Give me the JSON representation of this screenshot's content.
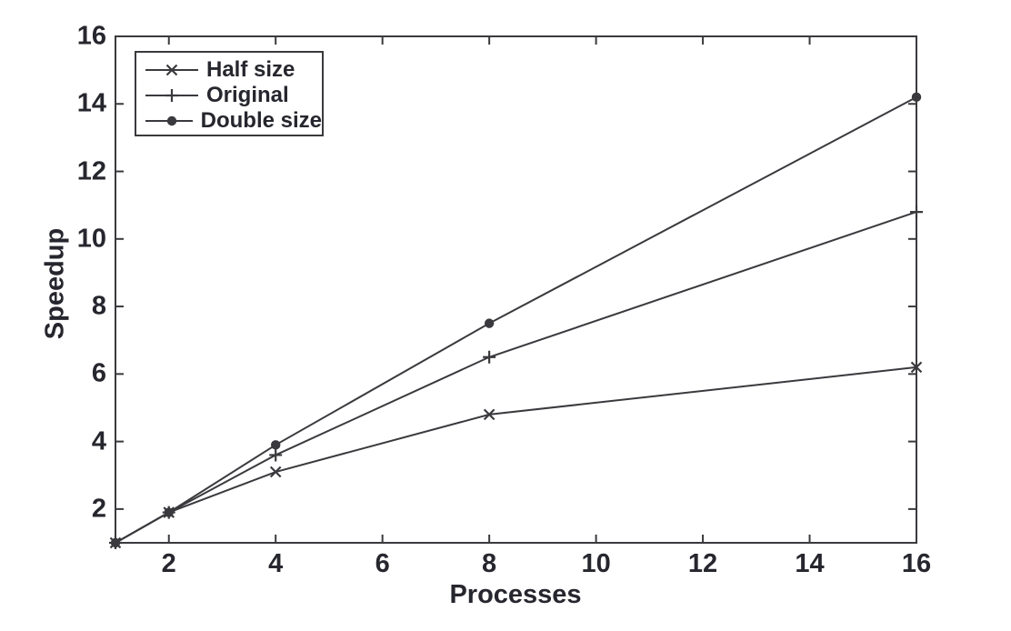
{
  "chart_data": {
    "type": "line",
    "title": "",
    "xlabel": "Processes",
    "ylabel": "Speedup",
    "x": [
      1,
      2,
      4,
      8,
      16
    ],
    "series": [
      {
        "name": "Half size",
        "marker": "x",
        "values": [
          1,
          1.9,
          3.1,
          4.8,
          6.2
        ]
      },
      {
        "name": "Original",
        "marker": "plus",
        "values": [
          1,
          1.9,
          3.6,
          6.5,
          10.8
        ]
      },
      {
        "name": "Double size",
        "marker": "dot",
        "values": [
          1,
          1.9,
          3.9,
          7.5,
          14.2
        ]
      }
    ],
    "xlim": [
      1,
      16
    ],
    "ylim": [
      1,
      16
    ],
    "xticks": [
      2,
      4,
      6,
      8,
      10,
      12,
      14,
      16
    ],
    "yticks": [
      2,
      4,
      6,
      8,
      10,
      12,
      14,
      16
    ],
    "grid": false,
    "legend_position": "top-left",
    "line_color": "#3a3a3e",
    "text_color": "#26262e",
    "background_color": "#ffffff"
  }
}
